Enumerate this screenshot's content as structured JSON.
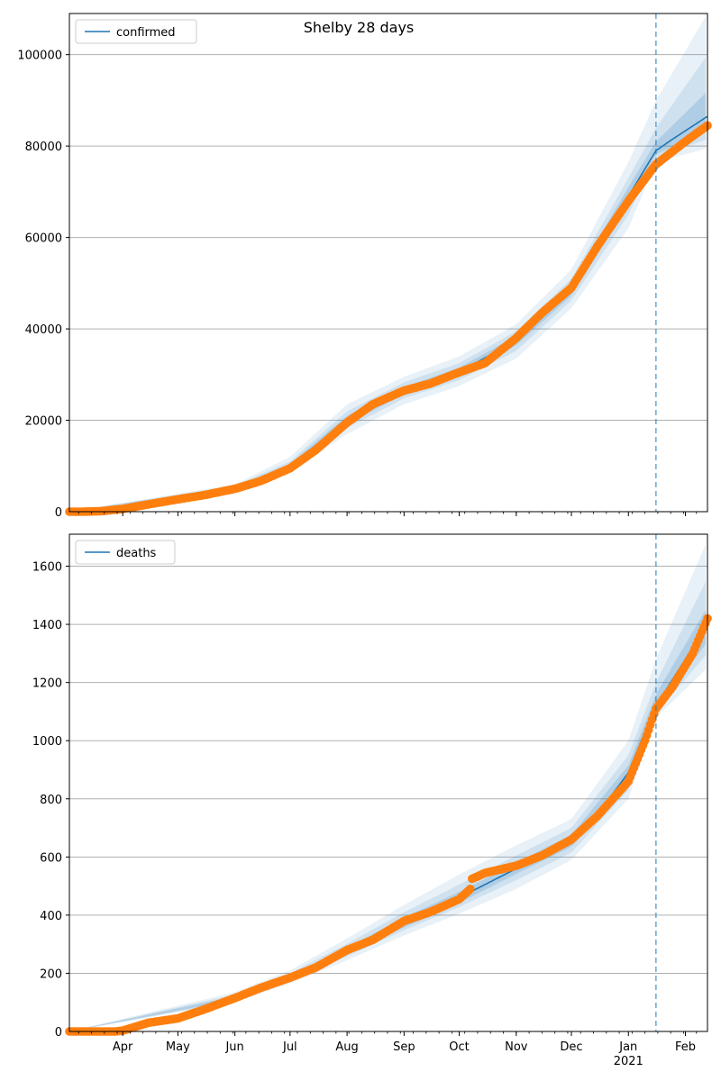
{
  "figure": {
    "title": "Shelby 28 days",
    "forecast_start": "2021-01-16"
  },
  "colors": {
    "model_line": "#1f77b4",
    "observed": "#ff7f0e",
    "band": "#1f77b4",
    "grid": "#b0b0b0",
    "forecast_marker": "#1f77b4"
  },
  "x_axis": {
    "range": [
      "2020-03-03",
      "2021-02-13"
    ],
    "month_labels": [
      {
        "date": "2020-04-01",
        "label": "Apr"
      },
      {
        "date": "2020-05-01",
        "label": "May"
      },
      {
        "date": "2020-06-01",
        "label": "Jun"
      },
      {
        "date": "2020-07-01",
        "label": "Jul"
      },
      {
        "date": "2020-08-01",
        "label": "Aug"
      },
      {
        "date": "2020-09-01",
        "label": "Sep"
      },
      {
        "date": "2020-10-01",
        "label": "Oct"
      },
      {
        "date": "2020-11-01",
        "label": "Nov"
      },
      {
        "date": "2020-12-01",
        "label": "Dec"
      },
      {
        "date": "2021-01-01",
        "label": "Jan"
      },
      {
        "date": "2021-02-01",
        "label": "Feb"
      }
    ],
    "year_label": {
      "date": "2021-01-01",
      "label": "2021"
    }
  },
  "chart_data": [
    {
      "type": "line",
      "legend": "confirmed",
      "legend_position": "upper-left",
      "grid": "y",
      "ylim": [
        0,
        109000
      ],
      "yticks": [
        0,
        20000,
        40000,
        60000,
        80000,
        100000
      ],
      "ytick_labels": [
        "0",
        "20000",
        "40000",
        "60000",
        "80000",
        "100000"
      ],
      "model_points": [
        [
          "2020-03-03",
          0
        ],
        [
          "2020-03-25",
          200
        ],
        [
          "2020-04-15",
          1500
        ],
        [
          "2020-05-01",
          2700
        ],
        [
          "2020-06-01",
          5200
        ],
        [
          "2020-07-01",
          10000
        ],
        [
          "2020-07-15",
          14500
        ],
        [
          "2020-08-01",
          20000
        ],
        [
          "2020-08-15",
          23500
        ],
        [
          "2020-09-01",
          26500
        ],
        [
          "2020-10-01",
          30500
        ],
        [
          "2020-11-01",
          37500
        ],
        [
          "2020-11-15",
          42500
        ],
        [
          "2020-12-01",
          48500
        ],
        [
          "2020-12-15",
          57000
        ],
        [
          "2021-01-01",
          69000
        ],
        [
          "2021-01-16",
          79000
        ],
        [
          "2021-01-25",
          81500
        ],
        [
          "2021-02-13",
          86500
        ]
      ],
      "observed_points": [
        [
          "2020-03-03",
          0
        ],
        [
          "2020-03-10",
          0
        ],
        [
          "2020-03-20",
          100
        ],
        [
          "2020-04-01",
          600
        ],
        [
          "2020-04-15",
          1600
        ],
        [
          "2020-05-01",
          2700
        ],
        [
          "2020-05-15",
          3600
        ],
        [
          "2020-06-01",
          5000
        ],
        [
          "2020-06-15",
          6700
        ],
        [
          "2020-07-01",
          9500
        ],
        [
          "2020-07-15",
          13500
        ],
        [
          "2020-08-01",
          19500
        ],
        [
          "2020-08-15",
          23500
        ],
        [
          "2020-09-01",
          26500
        ],
        [
          "2020-09-15",
          28000
        ],
        [
          "2020-10-01",
          30500
        ],
        [
          "2020-10-15",
          32500
        ],
        [
          "2020-11-01",
          38000
        ],
        [
          "2020-11-15",
          43500
        ],
        [
          "2020-12-01",
          49000
        ],
        [
          "2020-12-15",
          58000
        ],
        [
          "2021-01-01",
          68000
        ],
        [
          "2021-01-16",
          76000
        ],
        [
          "2021-02-01",
          81000
        ],
        [
          "2021-02-13",
          84500
        ]
      ],
      "bands": [
        {
          "name": "outer",
          "upper": [
            [
              "2020-03-03",
              0
            ],
            [
              "2020-06-01",
              6000
            ],
            [
              "2020-07-01",
              12000
            ],
            [
              "2020-08-01",
              23500
            ],
            [
              "2020-09-01",
              29500
            ],
            [
              "2020-10-01",
              34000
            ],
            [
              "2020-11-01",
              41000
            ],
            [
              "2020-12-01",
              53000
            ],
            [
              "2021-01-01",
              76500
            ],
            [
              "2021-01-16",
              90000
            ],
            [
              "2021-02-13",
              109000
            ]
          ],
          "lower": [
            [
              "2020-03-03",
              0
            ],
            [
              "2020-06-01",
              4500
            ],
            [
              "2020-07-01",
              8500
            ],
            [
              "2020-08-01",
              17000
            ],
            [
              "2020-09-01",
              23500
            ],
            [
              "2020-10-01",
              27500
            ],
            [
              "2020-11-01",
              33500
            ],
            [
              "2020-12-01",
              44500
            ],
            [
              "2021-01-01",
              62000
            ],
            [
              "2021-01-16",
              76500
            ],
            [
              "2021-02-13",
              79500
            ]
          ]
        },
        {
          "name": "middle",
          "upper": [
            [
              "2020-03-03",
              0
            ],
            [
              "2020-06-01",
              5700
            ],
            [
              "2020-07-01",
              11000
            ],
            [
              "2020-08-01",
              22000
            ],
            [
              "2020-09-01",
              28300
            ],
            [
              "2020-10-01",
              32500
            ],
            [
              "2020-11-01",
              39500
            ],
            [
              "2020-12-01",
              51000
            ],
            [
              "2021-01-01",
              73000
            ],
            [
              "2021-01-16",
              84000
            ],
            [
              "2021-02-13",
              100000
            ]
          ],
          "lower": [
            [
              "2020-03-03",
              0
            ],
            [
              "2020-06-01",
              4800
            ],
            [
              "2020-07-01",
              9200
            ],
            [
              "2020-08-01",
              18300
            ],
            [
              "2020-09-01",
              24800
            ],
            [
              "2020-10-01",
              28800
            ],
            [
              "2020-11-01",
              35200
            ],
            [
              "2020-12-01",
              46200
            ],
            [
              "2021-01-01",
              65000
            ],
            [
              "2021-01-16",
              77500
            ],
            [
              "2021-02-13",
              81500
            ]
          ]
        },
        {
          "name": "inner",
          "upper": [
            [
              "2020-03-03",
              0
            ],
            [
              "2020-06-01",
              5400
            ],
            [
              "2020-07-01",
              10500
            ],
            [
              "2020-08-01",
              21000
            ],
            [
              "2020-09-01",
              27300
            ],
            [
              "2020-10-01",
              31500
            ],
            [
              "2020-11-01",
              38500
            ],
            [
              "2020-12-01",
              49800
            ],
            [
              "2021-01-01",
              71000
            ],
            [
              "2021-01-16",
              81000
            ],
            [
              "2021-02-13",
              92000
            ]
          ],
          "lower": [
            [
              "2020-03-03",
              0
            ],
            [
              "2020-06-01",
              5000
            ],
            [
              "2020-07-01",
              9600
            ],
            [
              "2020-08-01",
              19200
            ],
            [
              "2020-09-01",
              25700
            ],
            [
              "2020-10-01",
              29600
            ],
            [
              "2020-11-01",
              36400
            ],
            [
              "2020-12-01",
              47300
            ],
            [
              "2021-01-01",
              67000
            ],
            [
              "2021-01-16",
              78200
            ],
            [
              "2021-02-13",
              83500
            ]
          ]
        }
      ]
    },
    {
      "type": "line",
      "legend": "deaths",
      "legend_position": "upper-left",
      "grid": "y",
      "ylim": [
        0,
        1710
      ],
      "yticks": [
        0,
        200,
        400,
        600,
        800,
        1000,
        1200,
        1400,
        1600
      ],
      "ytick_labels": [
        "0",
        "200",
        "400",
        "600",
        "800",
        "1000",
        "1200",
        "1400",
        "1600"
      ],
      "model_points": [
        [
          "2020-03-03",
          0
        ],
        [
          "2020-03-25",
          2
        ],
        [
          "2020-04-15",
          30
        ],
        [
          "2020-05-01",
          55
        ],
        [
          "2020-06-01",
          115
        ],
        [
          "2020-07-01",
          185
        ],
        [
          "2020-08-01",
          275
        ],
        [
          "2020-09-01",
          375
        ],
        [
          "2020-10-01",
          460
        ],
        [
          "2020-11-01",
          560
        ],
        [
          "2020-12-01",
          655
        ],
        [
          "2020-12-15",
          745
        ],
        [
          "2021-01-01",
          890
        ],
        [
          "2021-01-16",
          1120
        ],
        [
          "2021-02-01",
          1280
        ],
        [
          "2021-02-13",
          1395
        ]
      ],
      "observed_points": [
        [
          "2020-03-03",
          0
        ],
        [
          "2020-03-15",
          0
        ],
        [
          "2020-03-28",
          0
        ],
        [
          "2020-04-01",
          3
        ],
        [
          "2020-04-15",
          30
        ],
        [
          "2020-05-01",
          45
        ],
        [
          "2020-05-15",
          75
        ],
        [
          "2020-06-01",
          115
        ],
        [
          "2020-06-15",
          150
        ],
        [
          "2020-07-01",
          185
        ],
        [
          "2020-07-15",
          220
        ],
        [
          "2020-08-01",
          280
        ],
        [
          "2020-08-15",
          315
        ],
        [
          "2020-09-01",
          380
        ],
        [
          "2020-09-15",
          410
        ],
        [
          "2020-10-01",
          455
        ],
        [
          "2020-10-07",
          490
        ],
        [
          "2020-10-08",
          525
        ],
        [
          "2020-10-15",
          545
        ],
        [
          "2020-11-01",
          570
        ],
        [
          "2020-11-15",
          605
        ],
        [
          "2020-12-01",
          660
        ],
        [
          "2020-12-15",
          740
        ],
        [
          "2021-01-01",
          860
        ],
        [
          "2021-01-10",
          1000
        ],
        [
          "2021-01-16",
          1110
        ],
        [
          "2021-01-25",
          1185
        ],
        [
          "2021-02-05",
          1300
        ],
        [
          "2021-02-13",
          1420
        ]
      ],
      "bands": [
        {
          "name": "outer",
          "upper": [
            [
              "2020-03-03",
              0
            ],
            [
              "2020-06-01",
              135
            ],
            [
              "2020-07-01",
              210
            ],
            [
              "2020-08-01",
              320
            ],
            [
              "2020-09-01",
              435
            ],
            [
              "2020-10-01",
              540
            ],
            [
              "2020-11-01",
              640
            ],
            [
              "2020-12-01",
              730
            ],
            [
              "2021-01-01",
              1000
            ],
            [
              "2021-01-16",
              1280
            ],
            [
              "2021-02-13",
              1690
            ]
          ],
          "lower": [
            [
              "2020-03-03",
              0
            ],
            [
              "2020-06-01",
              100
            ],
            [
              "2020-07-01",
              165
            ],
            [
              "2020-08-01",
              245
            ],
            [
              "2020-09-01",
              330
            ],
            [
              "2020-10-01",
              405
            ],
            [
              "2020-11-01",
              490
            ],
            [
              "2020-12-01",
              590
            ],
            [
              "2021-01-01",
              800
            ],
            [
              "2021-01-16",
              1080
            ],
            [
              "2021-02-13",
              1250
            ]
          ]
        },
        {
          "name": "middle",
          "upper": [
            [
              "2020-03-03",
              0
            ],
            [
              "2020-06-01",
              127
            ],
            [
              "2020-07-01",
              200
            ],
            [
              "2020-08-01",
              302
            ],
            [
              "2020-09-01",
              410
            ],
            [
              "2020-10-01",
              505
            ],
            [
              "2020-11-01",
              605
            ],
            [
              "2020-12-01",
              700
            ],
            [
              "2021-01-01",
              950
            ],
            [
              "2021-01-16",
              1200
            ],
            [
              "2021-02-13",
              1560
            ]
          ],
          "lower": [
            [
              "2020-03-03",
              0
            ],
            [
              "2020-06-01",
              105
            ],
            [
              "2020-07-01",
              172
            ],
            [
              "2020-08-01",
              258
            ],
            [
              "2020-09-01",
              348
            ],
            [
              "2020-10-01",
              428
            ],
            [
              "2020-11-01",
              520
            ],
            [
              "2020-12-01",
              615
            ],
            [
              "2021-01-01",
              830
            ],
            [
              "2021-01-16",
              1095
            ],
            [
              "2021-02-13",
              1300
            ]
          ]
        },
        {
          "name": "inner",
          "upper": [
            [
              "2020-03-03",
              0
            ],
            [
              "2020-06-01",
              121
            ],
            [
              "2020-07-01",
              192
            ],
            [
              "2020-08-01",
              288
            ],
            [
              "2020-09-01",
              392
            ],
            [
              "2020-10-01",
              480
            ],
            [
              "2020-11-01",
              580
            ],
            [
              "2020-12-01",
              677
            ],
            [
              "2021-01-01",
              915
            ],
            [
              "2021-01-16",
              1160
            ],
            [
              "2021-02-13",
              1460
            ]
          ],
          "lower": [
            [
              "2020-03-03",
              0
            ],
            [
              "2020-06-01",
              109
            ],
            [
              "2020-07-01",
              178
            ],
            [
              "2020-08-01",
              264
            ],
            [
              "2020-09-01",
              358
            ],
            [
              "2020-10-01",
              442
            ],
            [
              "2020-11-01",
              542
            ],
            [
              "2020-12-01",
              635
            ],
            [
              "2021-01-01",
              860
            ],
            [
              "2021-01-16",
              1105
            ],
            [
              "2021-02-13",
              1340
            ]
          ]
        }
      ]
    }
  ]
}
